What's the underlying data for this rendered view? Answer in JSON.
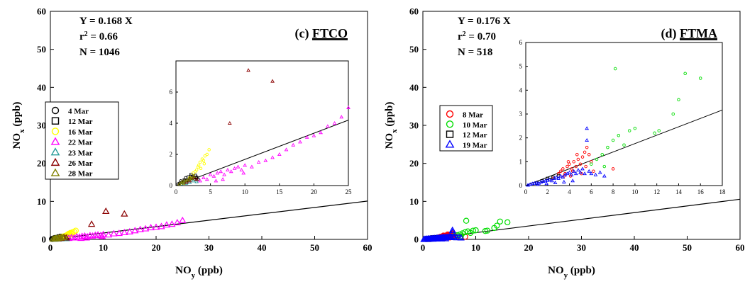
{
  "chart_data": [
    {
      "type": "scatter",
      "panel_label": "(c)",
      "panel_name": "FTCO",
      "stats": {
        "equation": "Y = 0.168 X",
        "r2_prefix": "r",
        "r2_sup": "2",
        "r2_value": " = 0.66",
        "n": "N = 1046"
      },
      "xlabel": {
        "main": "NO",
        "sub": "y",
        "unit": " (ppb)"
      },
      "ylabel": {
        "main": "NO",
        "sub": "x",
        "unit": " (ppb)"
      },
      "xlim": [
        0,
        60
      ],
      "ylim": [
        0,
        60
      ],
      "xticks": [
        0,
        10,
        20,
        30,
        40,
        50,
        60
      ],
      "yticks": [
        0,
        10,
        20,
        30,
        40,
        50,
        60
      ],
      "fit_slope": 0.168,
      "inset": {
        "xlim": [
          0,
          25
        ],
        "ylim": [
          0,
          8
        ],
        "xticks": [
          0,
          5,
          10,
          15,
          20,
          25
        ],
        "yticks": [
          0,
          2,
          4,
          6
        ]
      },
      "series": [
        {
          "name": "4 Mar",
          "marker": "circle",
          "color": "#000000",
          "points": [
            [
              0.3,
              0.1
            ],
            [
              0.5,
              0.15
            ],
            [
              0.8,
              0.2
            ],
            [
              1.0,
              0.25
            ],
            [
              1.2,
              0.3
            ],
            [
              1.5,
              0.35
            ],
            [
              1.8,
              0.3
            ],
            [
              2.0,
              0.4
            ],
            [
              2.3,
              0.45
            ],
            [
              2.5,
              0.5
            ],
            [
              2.8,
              0.4
            ],
            [
              3.0,
              0.55
            ],
            [
              1.4,
              0.5
            ],
            [
              2.1,
              0.6
            ],
            [
              0.7,
              0.3
            ]
          ]
        },
        {
          "name": "12 Mar",
          "marker": "square",
          "color": "#000000",
          "points": [
            [
              1.0,
              0.2
            ],
            [
              1.5,
              0.3
            ],
            [
              2.0,
              0.45
            ],
            [
              2.5,
              0.6
            ],
            [
              3.0,
              0.5
            ],
            [
              2.2,
              0.7
            ],
            [
              1.8,
              0.55
            ],
            [
              2.8,
              0.65
            ],
            [
              3.2,
              0.4
            ],
            [
              1.2,
              0.35
            ]
          ]
        },
        {
          "name": "16 Mar",
          "marker": "circle",
          "color": "#ffff00",
          "points": [
            [
              2.0,
              0.5
            ],
            [
              2.5,
              0.8
            ],
            [
              3.0,
              1.0
            ],
            [
              3.2,
              1.2
            ],
            [
              3.5,
              1.5
            ],
            [
              3.8,
              1.7
            ],
            [
              4.0,
              1.6
            ],
            [
              4.2,
              1.9
            ],
            [
              4.5,
              2.0
            ],
            [
              4.8,
              2.3
            ],
            [
              3.3,
              1.3
            ],
            [
              3.6,
              1.1
            ],
            [
              2.8,
              0.9
            ],
            [
              4.1,
              1.4
            ]
          ]
        },
        {
          "name": "22 Mar",
          "marker": "triangle",
          "color": "#ff00ff",
          "points": [
            [
              3.5,
              0.3
            ],
            [
              4.0,
              0.5
            ],
            [
              4.5,
              0.4
            ],
            [
              5.0,
              0.7
            ],
            [
              5.5,
              0.6
            ],
            [
              6.0,
              0.8
            ],
            [
              6.5,
              0.9
            ],
            [
              7.0,
              0.7
            ],
            [
              7.5,
              1.0
            ],
            [
              8.0,
              0.9
            ],
            [
              8.5,
              1.1
            ],
            [
              9.0,
              1.2
            ],
            [
              9.5,
              1.0
            ],
            [
              10.0,
              1.3
            ],
            [
              11.0,
              1.2
            ],
            [
              12.0,
              1.5
            ],
            [
              13.0,
              1.6
            ],
            [
              14.0,
              1.8
            ],
            [
              15.0,
              2.0
            ],
            [
              16.0,
              2.3
            ],
            [
              17.0,
              2.6
            ],
            [
              18.0,
              2.8
            ],
            [
              19.0,
              3.1
            ],
            [
              20.0,
              3.2
            ],
            [
              21.0,
              3.4
            ],
            [
              22.0,
              3.8
            ],
            [
              23.0,
              4.0
            ],
            [
              24.0,
              4.4
            ],
            [
              25.0,
              5.0
            ],
            [
              6.8,
              0.4
            ],
            [
              5.8,
              0.3
            ],
            [
              9.8,
              0.8
            ]
          ]
        },
        {
          "name": "23 Mar",
          "marker": "triangle",
          "color": "#2a9d9a",
          "points": [
            [
              0.8,
              0.1
            ],
            [
              1.2,
              0.2
            ],
            [
              1.5,
              0.15
            ],
            [
              2.0,
              0.2
            ],
            [
              2.5,
              0.3
            ],
            [
              3.0,
              0.25
            ]
          ]
        },
        {
          "name": "26 Mar",
          "marker": "triangle",
          "color": "#8b0000",
          "points": [
            [
              1.5,
              0.2
            ],
            [
              2.0,
              0.3
            ],
            [
              2.5,
              0.5
            ],
            [
              3.0,
              0.4
            ],
            [
              7.8,
              4.0
            ],
            [
              10.5,
              7.4
            ],
            [
              14.0,
              6.7
            ]
          ]
        },
        {
          "name": "28 Mar",
          "marker": "triangle",
          "color": "#808000",
          "points": [
            [
              0.5,
              0.1
            ],
            [
              0.8,
              0.2
            ],
            [
              1.0,
              0.25
            ],
            [
              1.3,
              0.3
            ],
            [
              1.6,
              0.35
            ],
            [
              2.0,
              0.5
            ],
            [
              2.3,
              0.45
            ],
            [
              2.6,
              0.6
            ],
            [
              1.9,
              0.4
            ],
            [
              1.1,
              0.15
            ]
          ]
        }
      ]
    },
    {
      "type": "scatter",
      "panel_label": "(d)",
      "panel_name": "FTMA",
      "stats": {
        "equation": "Y = 0.176 X",
        "r2_prefix": "r",
        "r2_sup": "2",
        "r2_value": " = 0.70",
        "n": "N = 518"
      },
      "xlabel": {
        "main": "NO",
        "sub": "y",
        "unit": " (ppb)"
      },
      "ylabel": {
        "main": "NO",
        "sub": "x",
        "unit": " (ppb)"
      },
      "xlim": [
        0,
        60
      ],
      "ylim": [
        0,
        60
      ],
      "xticks": [
        0,
        10,
        20,
        30,
        40,
        50,
        60
      ],
      "yticks": [
        0,
        10,
        20,
        30,
        40,
        50,
        60
      ],
      "fit_slope": 0.176,
      "inset": {
        "xlim": [
          0,
          18
        ],
        "ylim": [
          0,
          6
        ],
        "xticks": [
          0,
          2,
          4,
          6,
          8,
          10,
          12,
          14,
          16,
          18
        ],
        "yticks": [
          0,
          1,
          2,
          3,
          4,
          5,
          6
        ]
      },
      "series": [
        {
          "name": "8 Mar",
          "marker": "circle",
          "color": "#ff0000",
          "points": [
            [
              2.5,
              0.3
            ],
            [
              3.0,
              0.5
            ],
            [
              3.2,
              0.6
            ],
            [
              3.4,
              0.7
            ],
            [
              3.6,
              0.5
            ],
            [
              3.8,
              0.8
            ],
            [
              4.0,
              0.9
            ],
            [
              4.2,
              0.7
            ],
            [
              4.4,
              1.0
            ],
            [
              4.6,
              0.8
            ],
            [
              4.8,
              1.1
            ],
            [
              5.0,
              0.9
            ],
            [
              5.2,
              1.2
            ],
            [
              5.4,
              1.4
            ],
            [
              5.6,
              1.6
            ],
            [
              5.8,
              1.3
            ],
            [
              6.0,
              1.0
            ],
            [
              6.2,
              0.6
            ],
            [
              3.5,
              0.4
            ],
            [
              4.3,
              0.6
            ],
            [
              5.1,
              0.5
            ],
            [
              4.7,
              1.3
            ],
            [
              3.9,
              1.0
            ],
            [
              5.5,
              0.8
            ],
            [
              4.1,
              0.4
            ],
            [
              8.0,
              0.7
            ]
          ]
        },
        {
          "name": "10 Mar",
          "marker": "circle",
          "color": "#00dd00",
          "points": [
            [
              6.0,
              0.9
            ],
            [
              6.5,
              1.1
            ],
            [
              7.0,
              1.3
            ],
            [
              7.5,
              1.6
            ],
            [
              8.0,
              1.9
            ],
            [
              8.2,
              4.9
            ],
            [
              8.5,
              2.1
            ],
            [
              9.0,
              1.7
            ],
            [
              9.5,
              2.3
            ],
            [
              10.0,
              2.4
            ],
            [
              11.8,
              2.2
            ],
            [
              12.2,
              2.3
            ],
            [
              13.5,
              3.0
            ],
            [
              14.0,
              3.6
            ],
            [
              14.6,
              4.7
            ],
            [
              16.0,
              4.5
            ],
            [
              7.2,
              0.8
            ]
          ]
        },
        {
          "name": "12 Mar",
          "marker": "square",
          "color": "#000000",
          "points": [
            [
              1.0,
              0.1
            ],
            [
              1.5,
              0.2
            ],
            [
              2.0,
              0.3
            ],
            [
              2.5,
              0.35
            ],
            [
              3.0,
              0.4
            ],
            [
              2.2,
              0.25
            ]
          ]
        },
        {
          "name": "19 Mar",
          "marker": "triangle",
          "color": "#0000ff",
          "points": [
            [
              0.2,
              0.02
            ],
            [
              0.4,
              0.05
            ],
            [
              0.6,
              0.08
            ],
            [
              0.8,
              0.1
            ],
            [
              1.0,
              0.12
            ],
            [
              1.2,
              0.1
            ],
            [
              1.4,
              0.15
            ],
            [
              1.6,
              0.18
            ],
            [
              1.8,
              0.2
            ],
            [
              2.0,
              0.22
            ],
            [
              2.2,
              0.25
            ],
            [
              2.4,
              0.2
            ],
            [
              2.6,
              0.3
            ],
            [
              2.8,
              0.35
            ],
            [
              3.0,
              0.3
            ],
            [
              3.2,
              0.4
            ],
            [
              3.4,
              0.35
            ],
            [
              3.6,
              0.45
            ],
            [
              3.8,
              0.5
            ],
            [
              4.0,
              0.55
            ],
            [
              4.2,
              0.45
            ],
            [
              4.4,
              0.6
            ],
            [
              4.6,
              0.5
            ],
            [
              4.8,
              0.65
            ],
            [
              5.0,
              0.55
            ],
            [
              5.2,
              0.7
            ],
            [
              5.4,
              0.5
            ],
            [
              5.6,
              1.9
            ],
            [
              5.6,
              2.4
            ],
            [
              5.8,
              0.6
            ],
            [
              6.0,
              0.5
            ],
            [
              6.4,
              0.45
            ],
            [
              6.8,
              0.55
            ],
            [
              7.2,
              0.4
            ],
            [
              1.1,
              0.05
            ],
            [
              1.9,
              0.08
            ],
            [
              2.7,
              0.12
            ],
            [
              3.5,
              0.15
            ],
            [
              4.3,
              0.2
            ]
          ]
        }
      ]
    }
  ]
}
